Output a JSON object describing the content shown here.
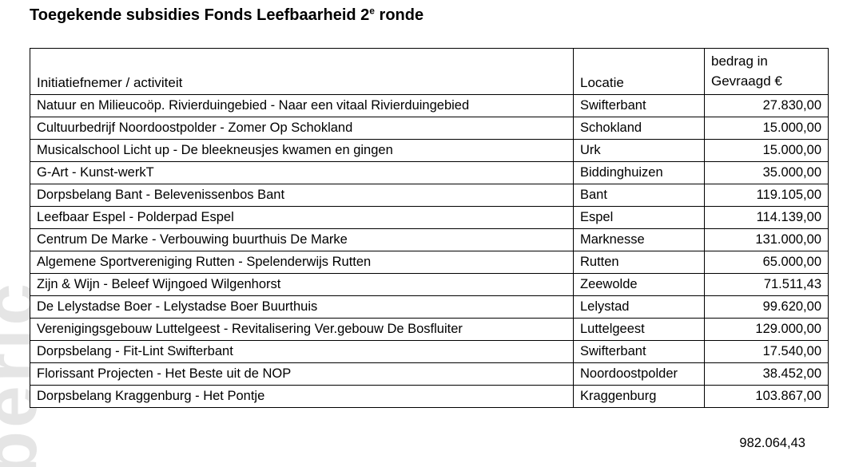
{
  "title": {
    "prefix": "Toegekende subsidies Fonds Leefbaarheid 2",
    "superscript": "e",
    "suffix": " ronde"
  },
  "watermark_text": "beric",
  "colors": {
    "text": "#000000",
    "border": "#000000",
    "watermark": "#e5e5e5",
    "background": "#ffffff"
  },
  "table": {
    "columns": {
      "initiative": "Initiatiefnemer / activiteit",
      "location": "Locatie",
      "amount_line1": "bedrag in",
      "amount_line2": "Gevraagd €"
    },
    "rows": [
      {
        "initiative": "Natuur en Milieucoöp. Rivierduingebied - Naar een vitaal Rivierduingebied",
        "location": "Swifterbant",
        "amount": "27.830,00"
      },
      {
        "initiative": "Cultuurbedrijf Noordoostpolder - Zomer Op Schokland",
        "location": "Schokland",
        "amount": "15.000,00"
      },
      {
        "initiative": "Musicalschool Licht up - De bleekneusjes kwamen en gingen",
        "location": "Urk",
        "amount": "15.000,00"
      },
      {
        "initiative": "G-Art - Kunst-werkT",
        "location": "Biddinghuizen",
        "amount": "35.000,00"
      },
      {
        "initiative": "Dorpsbelang Bant - Belevenissenbos Bant",
        "location": "Bant",
        "amount": "119.105,00"
      },
      {
        "initiative": "Leefbaar Espel - Polderpad Espel",
        "location": "Espel",
        "amount": "114.139,00"
      },
      {
        "initiative": "Centrum De Marke - Verbouwing buurthuis De Marke",
        "location": "Marknesse",
        "amount": "131.000,00"
      },
      {
        "initiative": "Algemene Sportvereniging Rutten - Spelenderwijs Rutten",
        "location": "Rutten",
        "amount": "65.000,00"
      },
      {
        "initiative": "Zijn & Wijn - Beleef Wijngoed Wilgenhorst",
        "location": "Zeewolde",
        "amount": "71.511,43"
      },
      {
        "initiative": "De Lelystadse Boer - Lelystadse Boer Buurthuis",
        "location": "Lelystad",
        "amount": "99.620,00"
      },
      {
        "initiative": "Verenigingsgebouw Luttelgeest - Revitalisering Ver.gebouw De Bosfluiter",
        "location": "Luttelgeest",
        "amount": "129.000,00"
      },
      {
        "initiative": "Dorpsbelang - Fit-Lint Swifterbant",
        "location": "Swifterbant",
        "amount": "17.540,00"
      },
      {
        "initiative": "Florissant Projecten - Het Beste uit de NOP",
        "location": "Noordoostpolder",
        "amount": "38.452,00"
      },
      {
        "initiative": "Dorpsbelang Kraggenburg - Het Pontje",
        "location": "Kraggenburg",
        "amount": "103.867,00"
      }
    ],
    "total": "982.064,43"
  }
}
